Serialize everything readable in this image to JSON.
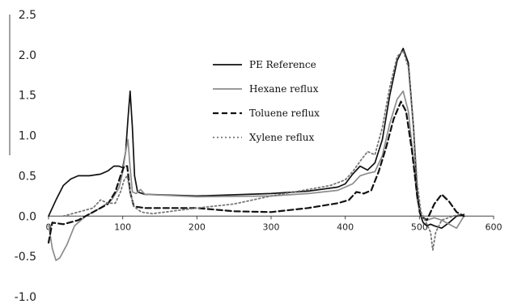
{
  "chart_data": {
    "type": "line",
    "xlim": [
      0,
      600
    ],
    "ylim": [
      -1.0,
      2.5
    ],
    "x_ticks": [
      0,
      100,
      200,
      300,
      400,
      500,
      600
    ],
    "y_ticks": [
      2.5,
      2.0,
      1.5,
      1.0,
      0.5,
      0.0,
      -0.5,
      -1.0
    ],
    "x_tick_labels": [
      "0",
      "100",
      "200",
      "300",
      "400",
      "500",
      "600"
    ],
    "y_tick_labels": [
      "2.5",
      "2.0",
      "1.5",
      "1.0",
      "0.5",
      "0.0",
      "-0.5",
      "-1.0"
    ],
    "grid": false,
    "legend_position": "center",
    "series": [
      {
        "name": "PE Reference",
        "color": "#111111",
        "style": "solid",
        "points": [
          [
            0,
            0.0
          ],
          [
            10,
            0.2
          ],
          [
            20,
            0.38
          ],
          [
            30,
            0.46
          ],
          [
            40,
            0.5
          ],
          [
            55,
            0.5
          ],
          [
            70,
            0.52
          ],
          [
            80,
            0.56
          ],
          [
            88,
            0.62
          ],
          [
            95,
            0.62
          ],
          [
            100,
            0.6
          ],
          [
            104,
            0.8
          ],
          [
            107,
            1.2
          ],
          [
            110,
            1.55
          ],
          [
            113,
            1.1
          ],
          [
            116,
            0.5
          ],
          [
            120,
            0.3
          ],
          [
            130,
            0.27
          ],
          [
            200,
            0.25
          ],
          [
            300,
            0.28
          ],
          [
            350,
            0.31
          ],
          [
            390,
            0.36
          ],
          [
            400,
            0.4
          ],
          [
            410,
            0.52
          ],
          [
            420,
            0.62
          ],
          [
            430,
            0.57
          ],
          [
            440,
            0.66
          ],
          [
            450,
            0.95
          ],
          [
            460,
            1.5
          ],
          [
            470,
            1.93
          ],
          [
            478,
            2.08
          ],
          [
            485,
            1.9
          ],
          [
            492,
            1.1
          ],
          [
            497,
            0.3
          ],
          [
            500,
            0.05
          ],
          [
            505,
            -0.08
          ],
          [
            510,
            -0.12
          ],
          [
            515,
            -0.1
          ],
          [
            520,
            -0.12
          ],
          [
            530,
            -0.15
          ],
          [
            540,
            -0.08
          ],
          [
            550,
            0.0
          ],
          [
            560,
            0.02
          ]
        ]
      },
      {
        "name": "Hexane reflux",
        "color": "#8c8c8c",
        "style": "solid",
        "points": [
          [
            0,
            -0.1
          ],
          [
            5,
            -0.4
          ],
          [
            10,
            -0.55
          ],
          [
            15,
            -0.52
          ],
          [
            25,
            -0.35
          ],
          [
            35,
            -0.12
          ],
          [
            50,
            0.0
          ],
          [
            70,
            0.1
          ],
          [
            85,
            0.2
          ],
          [
            95,
            0.35
          ],
          [
            100,
            0.55
          ],
          [
            104,
            0.8
          ],
          [
            107,
            0.95
          ],
          [
            110,
            0.6
          ],
          [
            113,
            0.3
          ],
          [
            118,
            0.28
          ],
          [
            124,
            0.33
          ],
          [
            130,
            0.27
          ],
          [
            200,
            0.24
          ],
          [
            300,
            0.25
          ],
          [
            350,
            0.28
          ],
          [
            390,
            0.32
          ],
          [
            410,
            0.4
          ],
          [
            420,
            0.5
          ],
          [
            430,
            0.53
          ],
          [
            440,
            0.55
          ],
          [
            450,
            0.75
          ],
          [
            460,
            1.15
          ],
          [
            470,
            1.45
          ],
          [
            478,
            1.55
          ],
          [
            485,
            1.3
          ],
          [
            492,
            0.7
          ],
          [
            497,
            0.2
          ],
          [
            502,
            0.0
          ],
          [
            510,
            -0.05
          ],
          [
            520,
            -0.02
          ],
          [
            530,
            -0.05
          ],
          [
            540,
            -0.1
          ],
          [
            550,
            -0.15
          ],
          [
            560,
            0.0
          ]
        ]
      },
      {
        "name": "Toluene reflux",
        "color": "#111111",
        "style": "dashed",
        "points": [
          [
            0,
            -0.33
          ],
          [
            5,
            -0.08
          ],
          [
            20,
            -0.1
          ],
          [
            40,
            -0.05
          ],
          [
            60,
            0.05
          ],
          [
            80,
            0.15
          ],
          [
            90,
            0.3
          ],
          [
            97,
            0.5
          ],
          [
            102,
            0.62
          ],
          [
            106,
            0.62
          ],
          [
            110,
            0.3
          ],
          [
            115,
            0.12
          ],
          [
            130,
            0.1
          ],
          [
            200,
            0.1
          ],
          [
            250,
            0.06
          ],
          [
            300,
            0.05
          ],
          [
            350,
            0.1
          ],
          [
            390,
            0.16
          ],
          [
            405,
            0.2
          ],
          [
            415,
            0.3
          ],
          [
            425,
            0.28
          ],
          [
            435,
            0.32
          ],
          [
            445,
            0.55
          ],
          [
            455,
            0.85
          ],
          [
            465,
            1.2
          ],
          [
            475,
            1.42
          ],
          [
            482,
            1.3
          ],
          [
            490,
            0.8
          ],
          [
            497,
            0.25
          ],
          [
            502,
            0.0
          ],
          [
            510,
            -0.05
          ],
          [
            520,
            0.15
          ],
          [
            530,
            0.27
          ],
          [
            540,
            0.18
          ],
          [
            550,
            0.05
          ],
          [
            560,
            0.0
          ]
        ]
      },
      {
        "name": "Xylene reflux",
        "color": "#777777",
        "style": "dotted",
        "points": [
          [
            20,
            0.0
          ],
          [
            40,
            0.05
          ],
          [
            60,
            0.1
          ],
          [
            70,
            0.2
          ],
          [
            80,
            0.16
          ],
          [
            90,
            0.16
          ],
          [
            97,
            0.3
          ],
          [
            102,
            0.45
          ],
          [
            106,
            0.5
          ],
          [
            110,
            0.3
          ],
          [
            115,
            0.12
          ],
          [
            125,
            0.05
          ],
          [
            140,
            0.03
          ],
          [
            200,
            0.1
          ],
          [
            250,
            0.15
          ],
          [
            300,
            0.25
          ],
          [
            350,
            0.33
          ],
          [
            380,
            0.38
          ],
          [
            400,
            0.45
          ],
          [
            410,
            0.55
          ],
          [
            420,
            0.68
          ],
          [
            430,
            0.8
          ],
          [
            440,
            0.76
          ],
          [
            450,
            1.1
          ],
          [
            460,
            1.6
          ],
          [
            470,
            1.98
          ],
          [
            478,
            2.05
          ],
          [
            485,
            1.85
          ],
          [
            492,
            1.1
          ],
          [
            497,
            0.4
          ],
          [
            502,
            0.05
          ],
          [
            505,
            0.0
          ],
          [
            510,
            -0.1
          ],
          [
            515,
            -0.2
          ],
          [
            518,
            -0.42
          ],
          [
            522,
            -0.2
          ],
          [
            530,
            -0.05
          ],
          [
            545,
            0.0
          ],
          [
            555,
            0.02
          ]
        ]
      }
    ]
  }
}
